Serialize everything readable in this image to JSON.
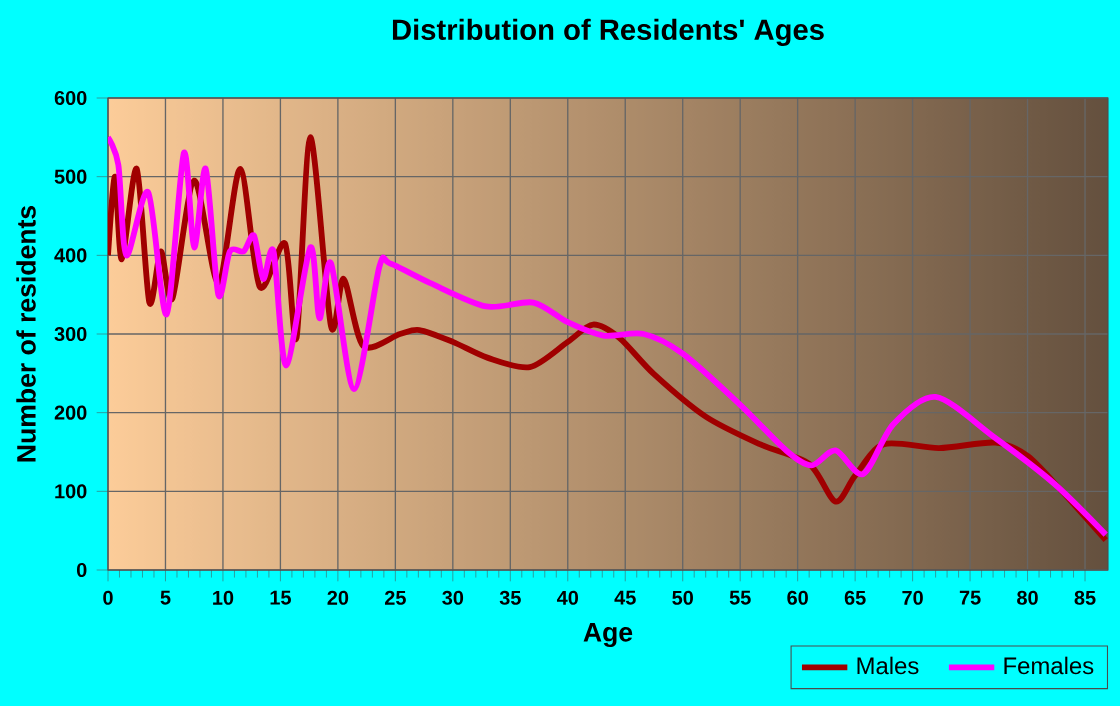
{
  "chart_data": {
    "type": "line",
    "title": "Distribution of Residents' Ages",
    "xlabel": "Age",
    "ylabel": "Number of residents",
    "xlim": [
      0,
      87
    ],
    "ylim": [
      0,
      600
    ],
    "xticks": [
      0,
      5,
      10,
      15,
      20,
      25,
      30,
      35,
      40,
      45,
      50,
      55,
      60,
      65,
      70,
      75,
      80,
      85
    ],
    "yticks": [
      0,
      100,
      200,
      300,
      400,
      500,
      600
    ],
    "grid": true,
    "legend": "bottom right",
    "line_style": "solid",
    "series": [
      {
        "name": "Males",
        "color": "#a00000",
        "x": [
          0,
          0.6,
          1.2,
          2.5,
          3.6,
          4.6,
          5.6,
          7.5,
          9.6,
          11.5,
          13.2,
          15.4,
          16.4,
          17.6,
          19.4,
          20.5,
          22.2,
          25.4,
          27.1,
          30,
          33,
          36.7,
          40,
          42.2,
          44.5,
          47.5,
          52,
          56.7,
          61,
          63.3,
          65,
          67.5,
          72.3,
          77.2,
          80,
          83,
          86.8
        ],
        "values": [
          400,
          500,
          395,
          510,
          340,
          405,
          345,
          495,
          365,
          510,
          360,
          415,
          295,
          550,
          310,
          370,
          285,
          300,
          305,
          290,
          270,
          258,
          290,
          312,
          295,
          249,
          195,
          160,
          135,
          87,
          120,
          160,
          155,
          162,
          145,
          100,
          38
        ]
      },
      {
        "name": "Females",
        "color": "#ff00ff",
        "x": [
          0,
          0.9,
          1.6,
          3.5,
          5.1,
          6.6,
          7.5,
          8.5,
          9.6,
          10.6,
          11.8,
          12.7,
          13.5,
          14.4,
          15.5,
          17.6,
          18.4,
          19.4,
          21.4,
          23.6,
          24.5,
          28,
          32.9,
          37,
          40,
          43.1,
          46.6,
          50,
          55,
          59,
          61.2,
          63.3,
          65.7,
          68.3,
          72,
          77,
          82.3,
          86.8
        ],
        "values": [
          550,
          515,
          400,
          480,
          325,
          530,
          410,
          510,
          350,
          405,
          405,
          425,
          370,
          405,
          260,
          410,
          320,
          390,
          230,
          385,
          390,
          365,
          335,
          340,
          315,
          298,
          300,
          275,
          210,
          152,
          133,
          152,
          122,
          185,
          220,
          170,
          110,
          45
        ]
      }
    ]
  }
}
